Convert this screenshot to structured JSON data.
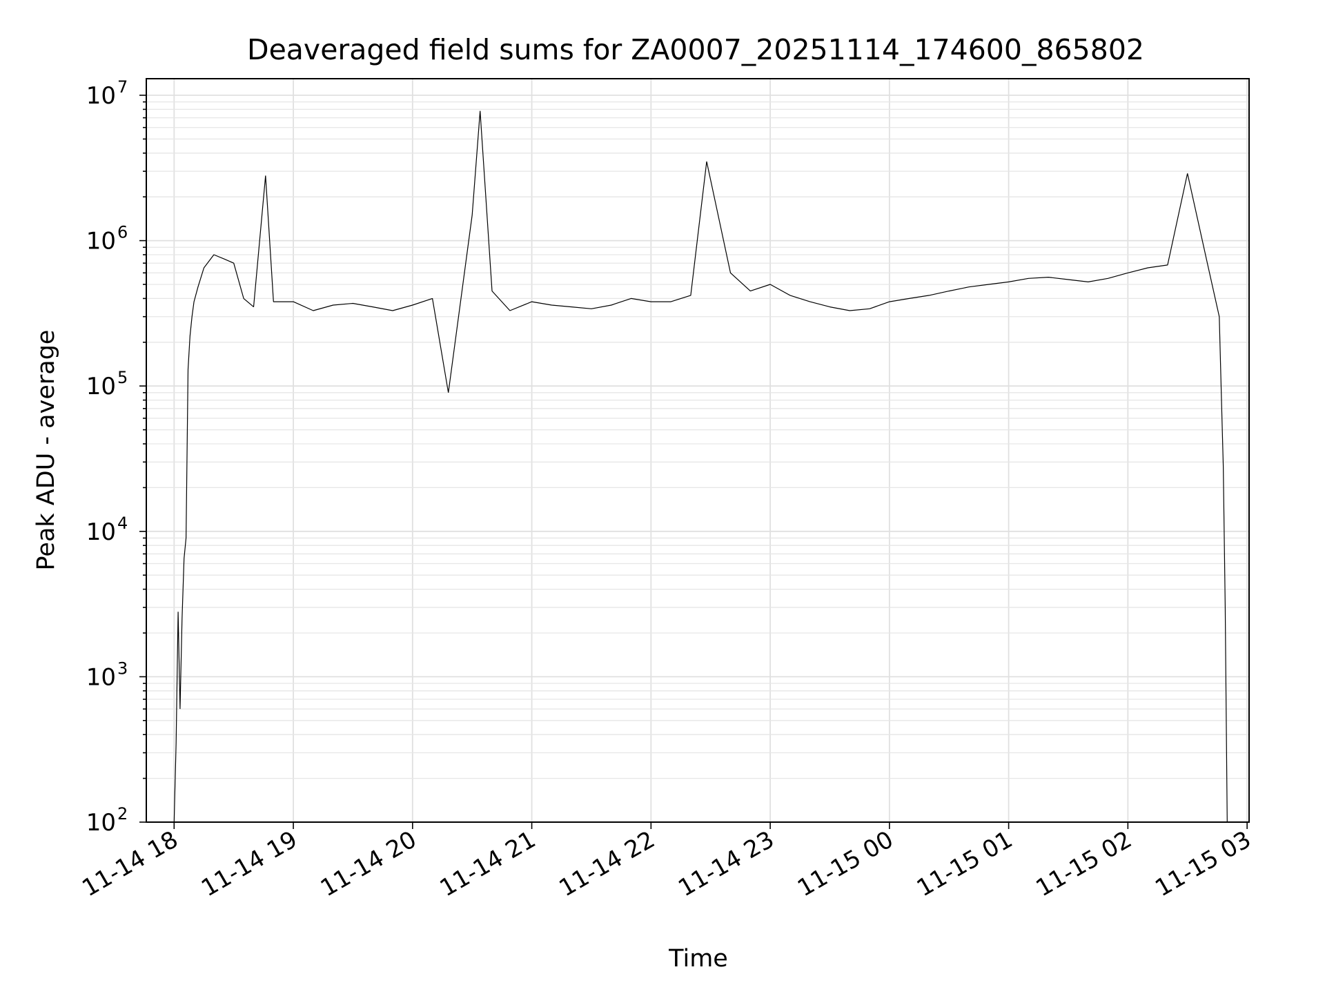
{
  "chart_data": {
    "type": "line",
    "title": "Deaveraged field sums for ZA0007_20251114_174600_865802",
    "xlabel": "Time",
    "ylabel": "Peak ADU - average",
    "yscale": "log",
    "ylim": [
      100,
      13000000
    ],
    "xlim": [
      "2025-11-14 17:46",
      "2025-11-15 03:01"
    ],
    "x_ticks": [
      "11-14 18",
      "11-14 19",
      "11-14 20",
      "11-14 21",
      "11-14 22",
      "11-14 23",
      "11-15 00",
      "11-15 01",
      "11-15 02",
      "11-15 03"
    ],
    "y_ticks": [
      {
        "base": "10",
        "exp": "2"
      },
      {
        "base": "10",
        "exp": "3"
      },
      {
        "base": "10",
        "exp": "4"
      },
      {
        "base": "10",
        "exp": "5"
      },
      {
        "base": "10",
        "exp": "6"
      },
      {
        "base": "10",
        "exp": "7"
      }
    ],
    "grid": "on",
    "line_color": "#000000",
    "series": [
      {
        "x": [
          "2025-11-14 18:00",
          "2025-11-14 18:01",
          "2025-11-14 18:02",
          "2025-11-14 18:03",
          "2025-11-14 18:04",
          "2025-11-14 18:05",
          "2025-11-14 18:06",
          "2025-11-14 18:07",
          "2025-11-14 18:08",
          "2025-11-14 18:09",
          "2025-11-14 18:10",
          "2025-11-14 18:12",
          "2025-11-14 18:15",
          "2025-11-14 18:20",
          "2025-11-14 18:25",
          "2025-11-14 18:30",
          "2025-11-14 18:35",
          "2025-11-14 18:40",
          "2025-11-14 18:46",
          "2025-11-14 18:50",
          "2025-11-14 19:00",
          "2025-11-14 19:10",
          "2025-11-14 19:20",
          "2025-11-14 19:30",
          "2025-11-14 19:40",
          "2025-11-14 19:50",
          "2025-11-14 20:00",
          "2025-11-14 20:10",
          "2025-11-14 20:18",
          "2025-11-14 20:30",
          "2025-11-14 20:34",
          "2025-11-14 20:40",
          "2025-11-14 20:49",
          "2025-11-14 21:00",
          "2025-11-14 21:10",
          "2025-11-14 21:20",
          "2025-11-14 21:30",
          "2025-11-14 21:40",
          "2025-11-14 21:50",
          "2025-11-14 22:00",
          "2025-11-14 22:10",
          "2025-11-14 22:20",
          "2025-11-14 22:28",
          "2025-11-14 22:40",
          "2025-11-14 22:50",
          "2025-11-14 23:00",
          "2025-11-14 23:10",
          "2025-11-14 23:20",
          "2025-11-14 23:30",
          "2025-11-14 23:40",
          "2025-11-14 23:50",
          "2025-11-15 00:00",
          "2025-11-15 00:10",
          "2025-11-15 00:20",
          "2025-11-15 00:30",
          "2025-11-15 00:40",
          "2025-11-15 00:50",
          "2025-11-15 01:00",
          "2025-11-15 01:10",
          "2025-11-15 01:20",
          "2025-11-15 01:30",
          "2025-11-15 01:40",
          "2025-11-15 01:50",
          "2025-11-15 02:00",
          "2025-11-15 02:10",
          "2025-11-15 02:20",
          "2025-11-15 02:30",
          "2025-11-15 02:40",
          "2025-11-15 02:46",
          "2025-11-15 02:47",
          "2025-11-15 02:48",
          "2025-11-15 02:49",
          "2025-11-15 02:50"
        ],
        "y": [
          100,
          350,
          2800,
          600,
          2500,
          6500,
          9000,
          130000,
          220000,
          300000,
          380000,
          480000,
          650000,
          800000,
          750000,
          700000,
          400000,
          350000,
          2800000,
          380000,
          380000,
          330000,
          360000,
          370000,
          350000,
          330000,
          360000,
          400000,
          90000,
          1500000,
          7800000,
          450000,
          330000,
          380000,
          360000,
          350000,
          340000,
          360000,
          400000,
          380000,
          380000,
          420000,
          3500000,
          600000,
          450000,
          500000,
          420000,
          380000,
          350000,
          330000,
          340000,
          380000,
          400000,
          420000,
          450000,
          480000,
          500000,
          520000,
          550000,
          560000,
          540000,
          520000,
          550000,
          600000,
          650000,
          680000,
          2900000,
          700000,
          300000,
          90000,
          28000,
          3000,
          100
        ]
      }
    ]
  }
}
